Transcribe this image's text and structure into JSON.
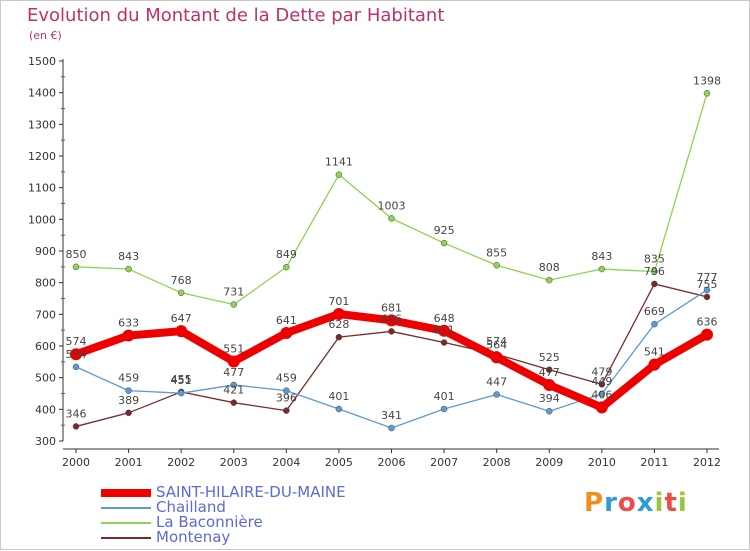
{
  "header": {
    "title": "Evolution du Montant de la Dette par Habitant",
    "unit": "(en €)"
  },
  "logo": {
    "text": "Proxiti",
    "colors": [
      "#f28e1c",
      "#2f9bd7",
      "#ef4b4b",
      "#2f9bd7",
      "#9bc53d",
      "#ef4b4b",
      "#9bc53d"
    ]
  },
  "chart_data": {
    "type": "line",
    "title": "Evolution du Montant de la Dette par Habitant",
    "ylabel": "(en €)",
    "ylim": [
      300,
      1500
    ],
    "yticks": [
      300,
      400,
      500,
      600,
      700,
      800,
      900,
      1000,
      1100,
      1200,
      1300,
      1400,
      1500
    ],
    "x": [
      "2000",
      "2001",
      "2002",
      "2003",
      "2004",
      "2005",
      "2006",
      "2007",
      "2008",
      "2009",
      "2010",
      "2011",
      "2012"
    ],
    "grid": false,
    "legend_position": "bottom-left",
    "series": [
      {
        "name": "SAINT-HILAIRE-DU-MAINE",
        "color": "#ee0000",
        "width": 8,
        "values": [
          574,
          633,
          647,
          551,
          641,
          701,
          681,
          648,
          564,
          477,
          406,
          541,
          636
        ]
      },
      {
        "name": "Chailland",
        "color": "#5a9bd5",
        "width": 1.3,
        "values": [
          534,
          459,
          451,
          477,
          459,
          401,
          341,
          401,
          447,
          394,
          449,
          669,
          777
        ]
      },
      {
        "name": "La Baconnière",
        "color": "#8ed450",
        "width": 1.3,
        "values": [
          850,
          843,
          768,
          731,
          849,
          1141,
          1003,
          925,
          855,
          808,
          843,
          835,
          1398
        ]
      },
      {
        "name": "Montenay",
        "color": "#7a2a2a",
        "width": 1.3,
        "values": [
          346,
          389,
          455,
          421,
          396,
          628,
          646,
          611,
          574,
          525,
          479,
          796,
          755
        ]
      }
    ]
  }
}
